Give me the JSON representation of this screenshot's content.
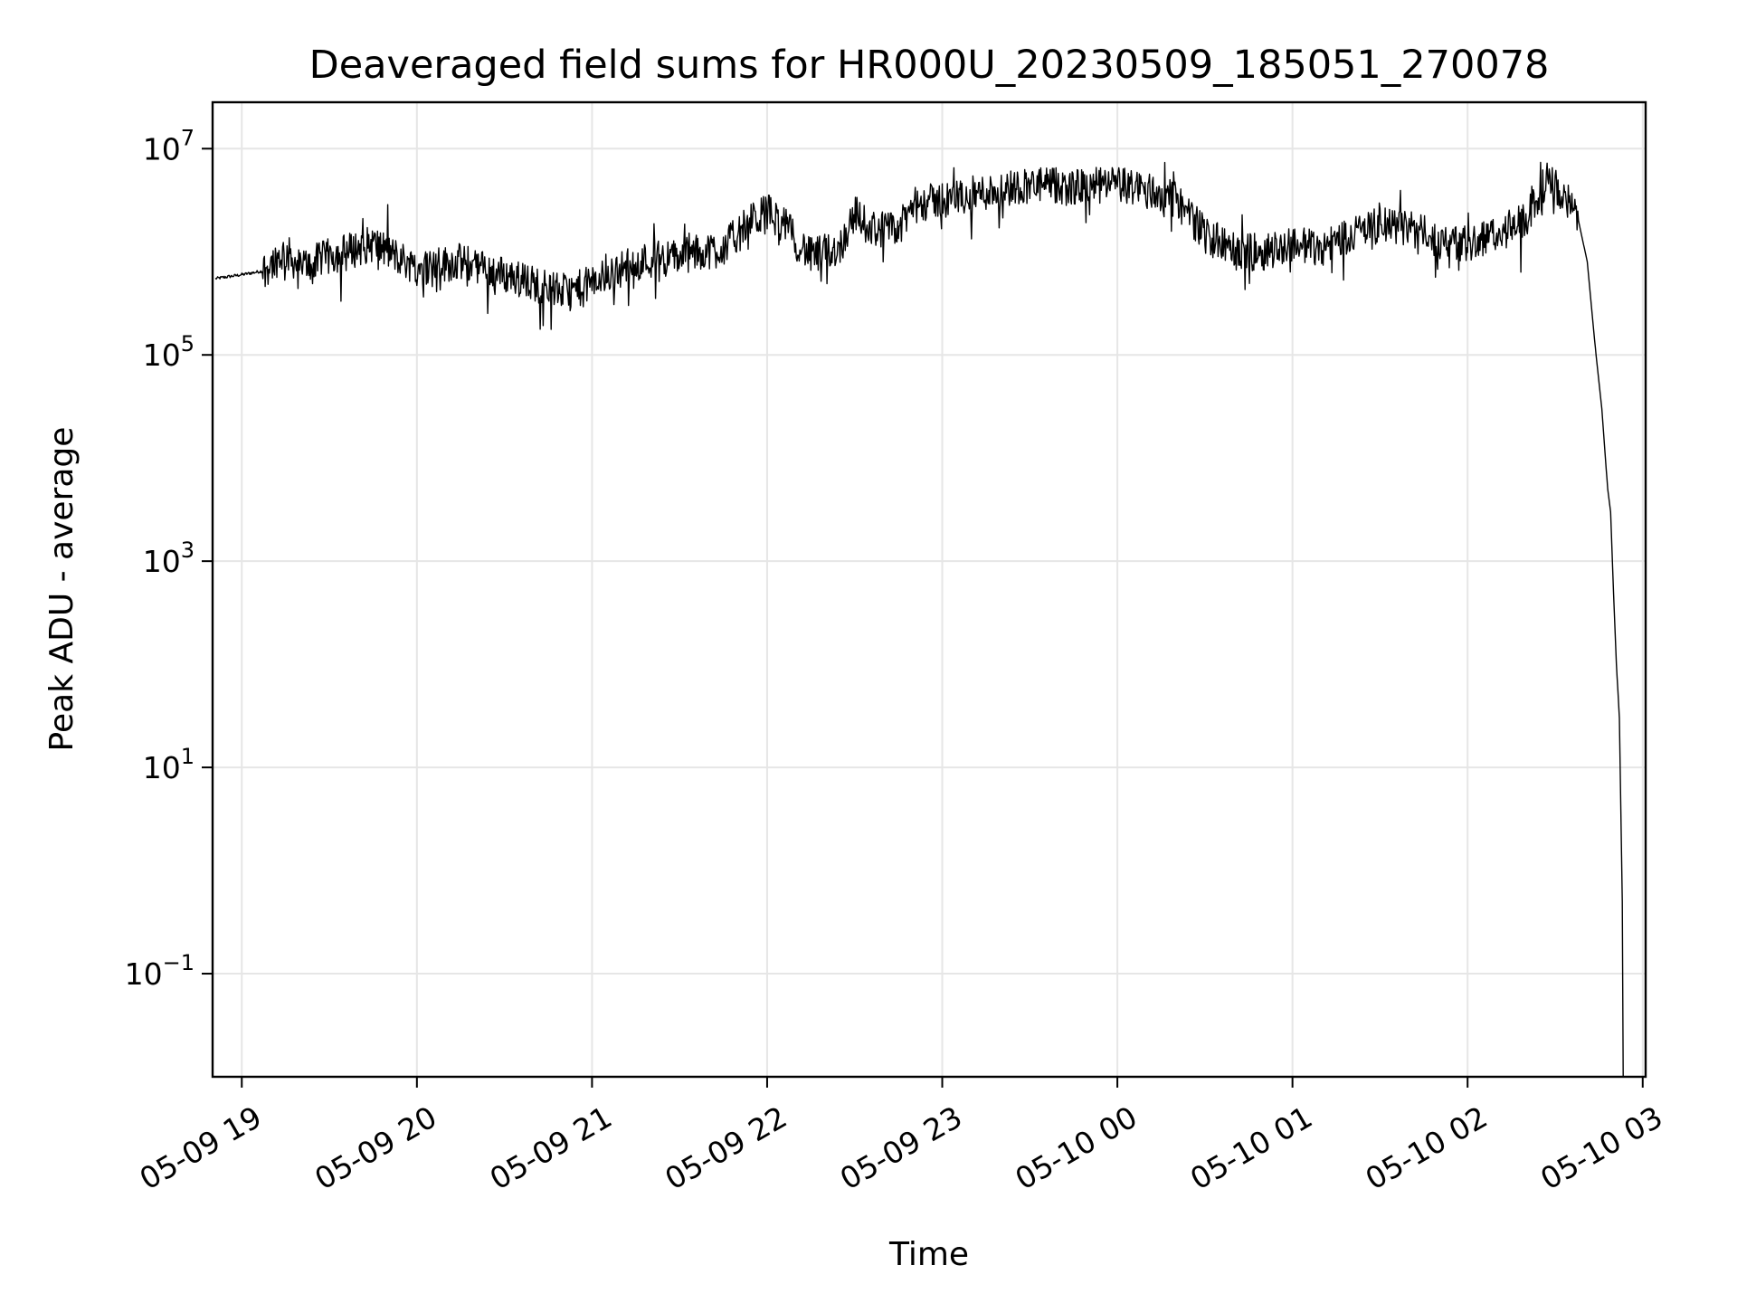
{
  "chart_data": {
    "type": "line",
    "title": "Deaveraged field sums for HR000U_20230509_185051_270078",
    "xlabel": "Time",
    "ylabel": "Peak ADU - average",
    "yscale": "log",
    "grid": true,
    "line_color": "#000000",
    "xlim": [
      "2023-05-09 18:50",
      "2023-05-10 03:01"
    ],
    "ylim_log10": [
      -2.0,
      7.45
    ],
    "x_ticks": [
      {
        "value": "2023-05-09 19:00",
        "label": "05-09 19"
      },
      {
        "value": "2023-05-09 20:00",
        "label": "05-09 20"
      },
      {
        "value": "2023-05-09 21:00",
        "label": "05-09 21"
      },
      {
        "value": "2023-05-09 22:00",
        "label": "05-09 22"
      },
      {
        "value": "2023-05-09 23:00",
        "label": "05-09 23"
      },
      {
        "value": "2023-05-10 00:00",
        "label": "05-10 00"
      },
      {
        "value": "2023-05-10 01:00",
        "label": "05-10 01"
      },
      {
        "value": "2023-05-10 02:00",
        "label": "05-10 02"
      },
      {
        "value": "2023-05-10 03:00",
        "label": "05-10 03"
      }
    ],
    "y_ticks": [
      {
        "value": 10000000,
        "base": "10",
        "exp": "7"
      },
      {
        "value": 100000,
        "base": "10",
        "exp": "5"
      },
      {
        "value": 1000,
        "base": "10",
        "exp": "3"
      },
      {
        "value": 10,
        "base": "10",
        "exp": "1"
      },
      {
        "value": 0.1,
        "base": "10",
        "exp": "−1"
      }
    ],
    "series": [
      {
        "points": [
          [
            "2023-05-09 18:51",
            550000
          ],
          [
            "2023-05-09 19:00",
            600000
          ],
          [
            "2023-05-09 19:07",
            650000
          ],
          [
            "2023-05-09 19:15",
            1000000
          ],
          [
            "2023-05-09 19:20",
            700000
          ],
          [
            "2023-05-09 19:30",
            900000
          ],
          [
            "2023-05-09 19:45",
            1200000
          ],
          [
            "2023-05-09 20:00",
            700000
          ],
          [
            "2023-05-09 20:15",
            800000
          ],
          [
            "2023-05-09 20:30",
            600000
          ],
          [
            "2023-05-09 20:45",
            450000
          ],
          [
            "2023-05-09 20:52",
            400000
          ],
          [
            "2023-05-09 21:00",
            500000
          ],
          [
            "2023-05-09 21:15",
            800000
          ],
          [
            "2023-05-09 21:30",
            900000
          ],
          [
            "2023-05-09 21:45",
            1100000
          ],
          [
            "2023-05-09 21:55",
            2000000
          ],
          [
            "2023-05-09 22:00",
            2500000
          ],
          [
            "2023-05-09 22:06",
            1800000
          ],
          [
            "2023-05-09 22:15",
            900000
          ],
          [
            "2023-05-09 22:25",
            1100000
          ],
          [
            "2023-05-09 22:30",
            2400000
          ],
          [
            "2023-05-09 22:35",
            1700000
          ],
          [
            "2023-05-09 22:45",
            1600000
          ],
          [
            "2023-05-09 22:50",
            2800000
          ],
          [
            "2023-05-09 23:00",
            3200000
          ],
          [
            "2023-05-09 23:15",
            3800000
          ],
          [
            "2023-05-09 23:30",
            4500000
          ],
          [
            "2023-05-09 23:45",
            4200000
          ],
          [
            "2023-05-10 00:00",
            4500000
          ],
          [
            "2023-05-10 00:10",
            4000000
          ],
          [
            "2023-05-10 00:20",
            3200000
          ],
          [
            "2023-05-10 00:30",
            1500000
          ],
          [
            "2023-05-10 00:40",
            1000000
          ],
          [
            "2023-05-10 00:50",
            1000000
          ],
          [
            "2023-05-10 01:00",
            1200000
          ],
          [
            "2023-05-10 01:10",
            1100000
          ],
          [
            "2023-05-10 01:20",
            1500000
          ],
          [
            "2023-05-10 01:30",
            1800000
          ],
          [
            "2023-05-10 01:40",
            1700000
          ],
          [
            "2023-05-10 01:50",
            1300000
          ],
          [
            "2023-05-10 02:00",
            1200000
          ],
          [
            "2023-05-10 02:10",
            1500000
          ],
          [
            "2023-05-10 02:20",
            2000000
          ],
          [
            "2023-05-10 02:27",
            5000000
          ],
          [
            "2023-05-10 02:33",
            3500000
          ],
          [
            "2023-05-10 02:38",
            2000000
          ],
          [
            "2023-05-10 02:41",
            800000
          ],
          [
            "2023-05-10 02:44",
            100000
          ],
          [
            "2023-05-10 02:46",
            30000
          ],
          [
            "2023-05-10 02:48",
            5000
          ],
          [
            "2023-05-10 02:49",
            3000
          ],
          [
            "2023-05-10 02:50",
            500
          ],
          [
            "2023-05-10 02:51",
            100
          ],
          [
            "2023-05-10 02:52",
            30
          ],
          [
            "2023-05-10 02:53",
            0.5
          ],
          [
            "2023-05-10 02:53",
            0.01
          ]
        ],
        "noise_log10_amplitude": 0.18
      }
    ]
  }
}
